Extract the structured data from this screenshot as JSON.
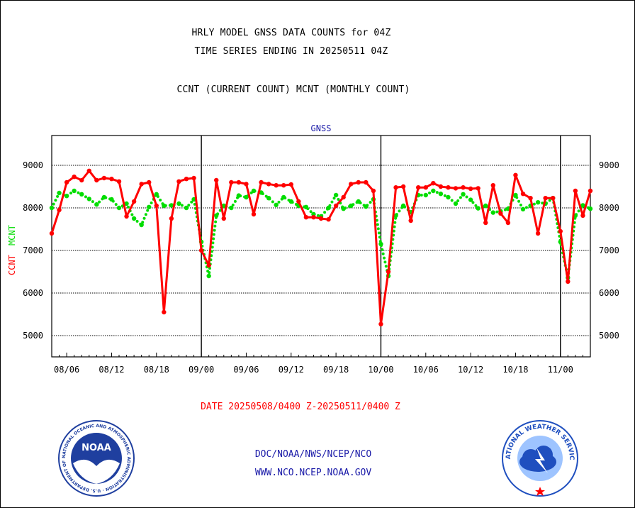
{
  "header": {
    "title_line1": "HRLY MODEL GNSS DATA COUNTS for 04Z",
    "title_line2": "TIME SERIES ENDING IN 20250511 04Z",
    "subtitle": "CCNT (CURRENT COUNT) MCNT (MONTHLY COUNT)"
  },
  "footer": {
    "date_range": "DATE 20250508/0400 Z-20250511/0400 Z",
    "credit_line1": "DOC/NOAA/NWS/NCEP/NCO",
    "credit_line2": "WWW.NCO.NCEP.NOAA.GOV"
  },
  "logos": {
    "noaa_text": "NOAA",
    "noaa_ring_text": "NATIONAL OCEANIC AND ATMOSPHERIC ADMINISTRATION · U.S. DEPARTMENT OF COMMERCE ·",
    "nws_ring_text": "NATIONAL WEATHER SERVICE"
  },
  "colors": {
    "ccnt": "#ff0000",
    "mcnt": "#00dd00",
    "axis": "#000000",
    "credit": "#1a1aa8",
    "noaa_blue": "#1f3f9f",
    "nws_blue": "#1f4fbf"
  },
  "chart_data": {
    "type": "line",
    "panel_label": "GNSS",
    "ylabel_left": {
      "ccnt": "CCNT",
      "mcnt": "MCNT"
    },
    "ylim": [
      4500,
      9700
    ],
    "yticks": [
      5000,
      6000,
      7000,
      8000,
      9000
    ],
    "grid": true,
    "x_range_hours": [
      0,
      72
    ],
    "x_ticks": [
      {
        "h": 2,
        "label": "08/06"
      },
      {
        "h": 8,
        "label": "08/12"
      },
      {
        "h": 14,
        "label": "08/18"
      },
      {
        "h": 20,
        "label": "09/00"
      },
      {
        "h": 26,
        "label": "09/06"
      },
      {
        "h": 32,
        "label": "09/12"
      },
      {
        "h": 38,
        "label": "09/18"
      },
      {
        "h": 44,
        "label": "10/00"
      },
      {
        "h": 50,
        "label": "10/06"
      },
      {
        "h": 56,
        "label": "10/12"
      },
      {
        "h": 62,
        "label": "10/18"
      },
      {
        "h": 68,
        "label": "11/00"
      }
    ],
    "day_boundaries": [
      20,
      44,
      68
    ],
    "series": [
      {
        "name": "CCNT",
        "style": "solid",
        "values": [
          7400,
          7950,
          8600,
          8730,
          8650,
          8870,
          8650,
          8700,
          8680,
          8620,
          7800,
          8150,
          8560,
          8600,
          8050,
          5550,
          7750,
          8620,
          8680,
          8700,
          7000,
          6650,
          8650,
          7750,
          8600,
          8600,
          8560,
          7850,
          8600,
          8560,
          8530,
          8530,
          8550,
          8150,
          7780,
          7780,
          7750,
          7730,
          8050,
          8250,
          8560,
          8600,
          8600,
          8400,
          5270,
          6500,
          8480,
          8500,
          7700,
          8480,
          8480,
          8580,
          8500,
          8480,
          8460,
          8480,
          8450,
          8460,
          7650,
          8530,
          7870,
          7650,
          8770,
          8330,
          8230,
          7400,
          8230,
          8230,
          7450,
          6270,
          8400,
          7820,
          8400
        ]
      },
      {
        "name": "MCNT",
        "style": "dotted",
        "values": [
          8000,
          8350,
          8280,
          8400,
          8320,
          8210,
          8080,
          8250,
          8200,
          8000,
          8100,
          7750,
          7600,
          8020,
          8320,
          8050,
          8060,
          8100,
          8000,
          8200,
          7200,
          6400,
          7820,
          8050,
          8000,
          8290,
          8250,
          8400,
          8360,
          8230,
          8070,
          8250,
          8150,
          8050,
          8020,
          7850,
          7800,
          8000,
          8300,
          7980,
          8050,
          8150,
          8030,
          8200,
          7150,
          6400,
          7820,
          8050,
          7900,
          8300,
          8300,
          8400,
          8330,
          8250,
          8100,
          8320,
          8190,
          7990,
          8050,
          7890,
          7920,
          7980,
          8300,
          7970,
          8050,
          8130,
          8100,
          8230,
          7200,
          6360,
          7820,
          8060,
          7980
        ]
      }
    ]
  }
}
